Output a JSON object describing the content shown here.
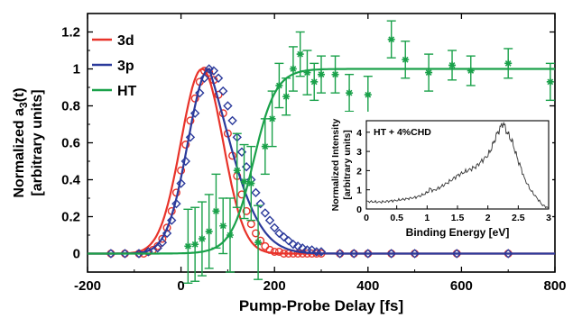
{
  "chart_data": [
    {
      "type": "line",
      "title": "",
      "xlabel": "Pump-Probe Delay [fs]",
      "ylabel_line1": "Normalized a",
      "ylabel_sub": "3",
      "ylabel_line2_suffix": "(t)",
      "ylabel_line3": "[arbitrary units]",
      "xlim": [
        -200,
        800
      ],
      "ylim": [
        -0.1,
        1.3
      ],
      "xticks": [
        -200,
        0,
        200,
        400,
        600,
        800
      ],
      "xtick_labels": [
        "-200",
        "0",
        "200",
        "400",
        "600",
        "800"
      ],
      "yticks": [
        0,
        0.2,
        0.4,
        0.6,
        0.8,
        1,
        1.2
      ],
      "ytick_labels": [
        "0",
        "0.2",
        "0.4",
        "0.6",
        "0.8",
        "1",
        "1.2"
      ],
      "legend_position": "top-left",
      "grid": false,
      "series": [
        {
          "name": "3d",
          "color": "#e8332a",
          "marker": "circle",
          "fit": {
            "model": "gaussian",
            "amplitude": 1.0,
            "center": 45,
            "sigma": 45
          },
          "x": [
            -150,
            -120,
            -90,
            -80,
            -70,
            -60,
            -50,
            -40,
            -30,
            -20,
            -10,
            0,
            10,
            20,
            30,
            40,
            50,
            60,
            70,
            80,
            90,
            100,
            110,
            120,
            130,
            140,
            150,
            160,
            170,
            180,
            190,
            200,
            210,
            220,
            230,
            240,
            250,
            260,
            270,
            280,
            290,
            300,
            340,
            370,
            400,
            450,
            500,
            590,
            700
          ],
          "values": [
            0,
            0,
            0,
            0,
            0.01,
            0.02,
            0.04,
            0.08,
            0.14,
            0.23,
            0.33,
            0.45,
            0.59,
            0.72,
            0.84,
            0.93,
            0.99,
            0.98,
            0.94,
            0.86,
            0.76,
            0.65,
            0.53,
            0.42,
            0.32,
            0.23,
            0.16,
            0.11,
            0.07,
            0.04,
            0.02,
            0.01,
            0.01,
            0,
            0,
            0,
            0,
            0,
            0,
            0,
            0,
            0,
            0,
            0,
            0,
            0,
            0,
            0,
            0
          ]
        },
        {
          "name": "3p",
          "color": "#2b3a9b",
          "marker": "diamond",
          "fit": {
            "model": "exp-gaussian",
            "amplitude": 1.0,
            "center": 60,
            "sigma": 45,
            "tau": 60
          },
          "x": [
            -150,
            -120,
            -90,
            -70,
            -50,
            -40,
            -30,
            -20,
            -10,
            0,
            10,
            20,
            30,
            40,
            50,
            60,
            70,
            80,
            90,
            100,
            110,
            120,
            130,
            140,
            150,
            160,
            170,
            180,
            190,
            200,
            210,
            220,
            230,
            240,
            250,
            260,
            270,
            280,
            290,
            300,
            340,
            370,
            400,
            450,
            500,
            590,
            700
          ],
          "values": [
            0,
            0,
            0,
            0.01,
            0.03,
            0.06,
            0.11,
            0.18,
            0.27,
            0.38,
            0.5,
            0.63,
            0.76,
            0.87,
            0.95,
            1.0,
            0.99,
            0.95,
            0.88,
            0.8,
            0.72,
            0.63,
            0.55,
            0.47,
            0.4,
            0.33,
            0.27,
            0.22,
            0.18,
            0.14,
            0.11,
            0.09,
            0.07,
            0.05,
            0.04,
            0.03,
            0.02,
            0.02,
            0.01,
            0.01,
            0,
            0,
            0,
            0,
            0,
            0,
            0
          ]
        },
        {
          "name": "HT",
          "color": "#1aa14a",
          "marker": "asterisk",
          "fit": {
            "model": "sigmoid",
            "amplitude": 1.0,
            "center": 155,
            "width": 24
          },
          "x": [
            15,
            30,
            45,
            60,
            75,
            90,
            105,
            120,
            135,
            150,
            165,
            180,
            195,
            210,
            225,
            240,
            255,
            270,
            285,
            300,
            330,
            360,
            400,
            450,
            480,
            530,
            580,
            620,
            700,
            790
          ],
          "values": [
            0.04,
            0.05,
            0.08,
            0.12,
            0.23,
            0.15,
            0.1,
            0.45,
            0.39,
            0.38,
            0.06,
            0.58,
            0.73,
            0.91,
            0.85,
            1.0,
            1.08,
            0.98,
            0.93,
            0.97,
            0.97,
            0.87,
            0.86,
            1.16,
            1.05,
            0.98,
            1.02,
            0.99,
            1.03,
            0.93
          ],
          "errors": [
            0.2,
            0.2,
            0.2,
            0.2,
            0.2,
            0.15,
            0.2,
            0.2,
            0.2,
            0.2,
            0.2,
            0.15,
            0.15,
            0.12,
            0.1,
            0.12,
            0.12,
            0.12,
            0.1,
            0.1,
            0.1,
            0.1,
            0.1,
            0.1,
            0.1,
            0.1,
            0.08,
            0.08,
            0.08,
            0.1
          ]
        }
      ]
    },
    {
      "type": "line",
      "title": "HT + 4%CHD",
      "xlabel": "Binding Energy [eV]",
      "ylabel": "Normalized Intensity [arbitrary units]",
      "xlim": [
        0,
        3
      ],
      "ylim": [
        0,
        4.6
      ],
      "xticks": [
        0,
        0.5,
        1,
        1.5,
        2,
        2.5,
        3
      ],
      "xtick_labels": [
        "0",
        "0.5",
        "1",
        "1.5",
        "2",
        "2.5",
        "3"
      ],
      "yticks": [
        0,
        1,
        2,
        3,
        4
      ],
      "ytick_labels": [
        "0",
        "1",
        "2",
        "3",
        "4"
      ],
      "series": [
        {
          "color": "#333333",
          "x": [
            0,
            0.1,
            0.2,
            0.3,
            0.4,
            0.5,
            0.6,
            0.7,
            0.8,
            0.9,
            1.0,
            1.05,
            1.1,
            1.2,
            1.3,
            1.4,
            1.5,
            1.6,
            1.7,
            1.8,
            1.9,
            2.0,
            2.05,
            2.1,
            2.15,
            2.2,
            2.25,
            2.3,
            2.35,
            2.4,
            2.45,
            2.5,
            2.55,
            2.6,
            2.7,
            2.8,
            2.9,
            3.0
          ],
          "values": [
            0.4,
            0.38,
            0.36,
            0.38,
            0.42,
            0.45,
            0.5,
            0.55,
            0.6,
            0.7,
            0.85,
            1.05,
            0.95,
            1.1,
            1.3,
            1.5,
            1.75,
            1.9,
            2.05,
            2.2,
            2.5,
            2.8,
            3.1,
            3.5,
            3.9,
            4.2,
            4.5,
            4.1,
            3.8,
            3.5,
            3.0,
            2.5,
            2.1,
            1.6,
            1.0,
            0.6,
            0.2,
            0.05
          ]
        }
      ]
    }
  ]
}
